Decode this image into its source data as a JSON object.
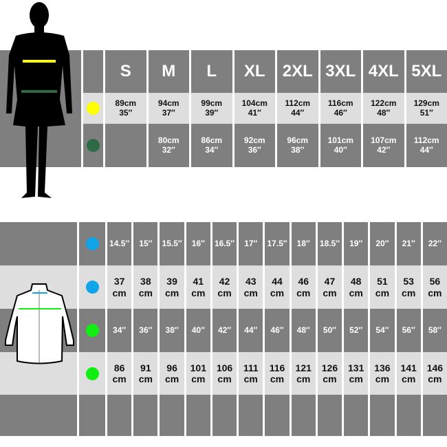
{
  "body_chart": {
    "sizes": [
      "S",
      "M",
      "L",
      "XL",
      "2XL",
      "3XL",
      "4XL",
      "5XL"
    ],
    "rows": [
      {
        "marker": "chest",
        "color": "#ffff00",
        "values": [
          "89cm\n35″",
          "94cm\n37″",
          "99cm\n39″",
          "104cm\n41″",
          "112cm\n44″",
          "116cm\n46″",
          "122cm\n48″",
          "129cm\n51″"
        ]
      },
      {
        "marker": "waist",
        "color": "#2e6b45",
        "values": [
          "",
          "80cm\n32″",
          "86cm\n34″",
          "92cm\n36″",
          "96cm\n38″",
          "101cm\n40″",
          "107cm\n42″",
          "112cm\n44″"
        ]
      }
    ]
  },
  "shirt_chart": {
    "rows": [
      {
        "marker": "collar",
        "color": "#10a4e8",
        "style": "dark",
        "values": [
          "14.5″",
          "15″",
          "15.5″",
          "16″",
          "16.5″",
          "17″",
          "17.5″",
          "18″",
          "18.5″",
          "19″",
          "20″",
          "21″",
          "22″"
        ]
      },
      {
        "marker": "collar",
        "color": "#10a4e8",
        "style": "light",
        "values": [
          "37\ncm",
          "38\ncm",
          "39\ncm",
          "41\ncm",
          "42\ncm",
          "43\ncm",
          "44\ncm",
          "46\ncm",
          "47\ncm",
          "48\ncm",
          "51\ncm",
          "53\ncm",
          "56\ncm"
        ]
      },
      {
        "marker": "chest",
        "color": "#11ee11",
        "style": "dark",
        "values": [
          "34″",
          "36″",
          "38″",
          "40″",
          "42″",
          "44″",
          "46″",
          "48″",
          "50″",
          "52″",
          "54″",
          "56″",
          "58″"
        ]
      },
      {
        "marker": "chest",
        "color": "#11ee11",
        "style": "light",
        "values": [
          "86\ncm",
          "91\ncm",
          "96\ncm",
          "101\ncm",
          "106\ncm",
          "111\ncm",
          "116\ncm",
          "121\ncm",
          "126\ncm",
          "131\ncm",
          "136\ncm",
          "141\ncm",
          "146\ncm"
        ]
      },
      {
        "marker": "",
        "color": "",
        "style": "dark",
        "values": [
          "",
          "",
          "",
          "",
          "",
          "",
          "",
          "",
          "",
          "",
          "",
          "",
          ""
        ]
      }
    ]
  }
}
